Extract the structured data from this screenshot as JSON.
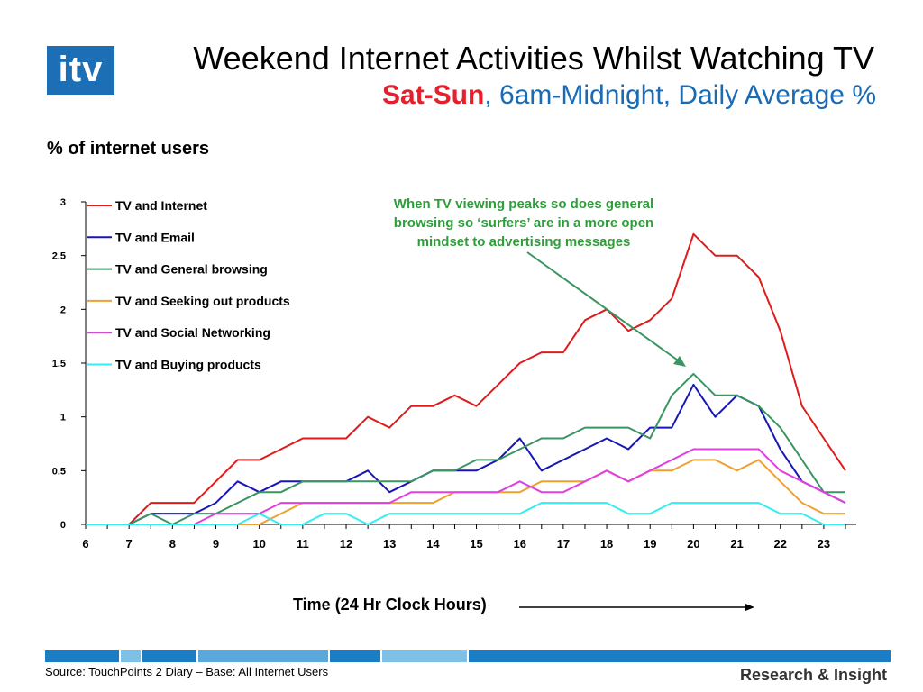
{
  "logo": {
    "text": "itv"
  },
  "title": "Weekend Internet Activities Whilst Watching TV",
  "subtitle": {
    "highlight": "Sat-Sun",
    "rest": ", 6am-Midnight, Daily Average %"
  },
  "y_heading": "% of internet users",
  "annotation": "When TV viewing peaks so does general browsing so ‘surfers’ are in a more open mindset to advertising messages",
  "x_title": "Time (24 Hr Clock Hours)",
  "source": "Source: TouchPoints 2 Diary  – Base: All Internet Users",
  "brand": "Research & Insight",
  "colors": {
    "tv_internet": "#e01b1b",
    "tv_email": "#1717b8",
    "tv_general": "#3b9463",
    "tv_products": "#f0a030",
    "tv_social": "#e040e0",
    "tv_buying": "#33eef0",
    "annotation": "#2e9e3a",
    "title_blue": "#1a6bb3",
    "title_red": "#e3202c"
  },
  "chart_data": {
    "type": "line",
    "x": [
      6,
      6.5,
      7,
      7.5,
      8,
      8.5,
      9,
      9.5,
      10,
      10.5,
      11,
      11.5,
      12,
      12.5,
      13,
      13.5,
      14,
      14.5,
      15,
      15.5,
      16,
      16.5,
      17,
      17.5,
      18,
      18.5,
      19,
      19.5,
      20,
      20.5,
      21,
      21.5,
      22,
      22.5,
      23,
      23.5
    ],
    "x_ticks": [
      "6",
      "7",
      "8",
      "9",
      "10",
      "11",
      "12",
      "13",
      "14",
      "15",
      "16",
      "17",
      "18",
      "19",
      "20",
      "21",
      "22",
      "23"
    ],
    "y_ticks": [
      "0",
      "0.5",
      "1",
      "1.5",
      "2",
      "2.5",
      "3"
    ],
    "ylim": [
      0,
      3
    ],
    "legend_position": "top-left",
    "series": [
      {
        "name": "TV and Internet",
        "color_key": "tv_internet",
        "values": [
          0,
          0,
          0,
          0.2,
          0.2,
          0.2,
          0.4,
          0.6,
          0.6,
          0.7,
          0.8,
          0.8,
          0.8,
          1.0,
          0.9,
          1.1,
          1.1,
          1.2,
          1.1,
          1.3,
          1.5,
          1.6,
          1.6,
          1.9,
          2.0,
          1.8,
          1.9,
          2.1,
          2.7,
          2.5,
          2.5,
          2.3,
          1.8,
          1.1,
          0.8,
          0.5
        ]
      },
      {
        "name": "TV and Email",
        "color_key": "tv_email",
        "values": [
          0,
          0,
          0,
          0.1,
          0.1,
          0.1,
          0.2,
          0.4,
          0.3,
          0.4,
          0.4,
          0.4,
          0.4,
          0.5,
          0.3,
          0.4,
          0.5,
          0.5,
          0.5,
          0.6,
          0.8,
          0.5,
          0.6,
          0.7,
          0.8,
          0.7,
          0.9,
          0.9,
          1.3,
          1.0,
          1.2,
          1.1,
          0.7,
          0.4,
          0.3,
          0.2
        ]
      },
      {
        "name": "TV and General browsing",
        "color_key": "tv_general",
        "values": [
          0,
          0,
          0,
          0.1,
          0,
          0.1,
          0.1,
          0.2,
          0.3,
          0.3,
          0.4,
          0.4,
          0.4,
          0.4,
          0.4,
          0.4,
          0.5,
          0.5,
          0.6,
          0.6,
          0.7,
          0.8,
          0.8,
          0.9,
          0.9,
          0.9,
          0.8,
          1.2,
          1.4,
          1.2,
          1.2,
          1.1,
          0.9,
          0.6,
          0.3,
          0.3
        ]
      },
      {
        "name": "TV and Seeking out products",
        "color_key": "tv_products",
        "values": [
          0,
          0,
          0,
          0,
          0,
          0,
          0,
          0,
          0,
          0.1,
          0.2,
          0.2,
          0.2,
          0.2,
          0.2,
          0.2,
          0.2,
          0.3,
          0.3,
          0.3,
          0.3,
          0.4,
          0.4,
          0.4,
          0.5,
          0.4,
          0.5,
          0.5,
          0.6,
          0.6,
          0.5,
          0.6,
          0.4,
          0.2,
          0.1,
          0.1
        ]
      },
      {
        "name": "TV and Social Networking",
        "color_key": "tv_social",
        "values": [
          0,
          0,
          0,
          0,
          0,
          0,
          0.1,
          0.1,
          0.1,
          0.2,
          0.2,
          0.2,
          0.2,
          0.2,
          0.2,
          0.3,
          0.3,
          0.3,
          0.3,
          0.3,
          0.4,
          0.3,
          0.3,
          0.4,
          0.5,
          0.4,
          0.5,
          0.6,
          0.7,
          0.7,
          0.7,
          0.7,
          0.5,
          0.4,
          0.3,
          0.2
        ]
      },
      {
        "name": "TV and Buying products",
        "color_key": "tv_buying",
        "values": [
          0,
          0,
          0,
          0,
          0,
          0,
          0,
          0,
          0.1,
          0,
          0,
          0.1,
          0.1,
          0,
          0.1,
          0.1,
          0.1,
          0.1,
          0.1,
          0.1,
          0.1,
          0.2,
          0.2,
          0.2,
          0.2,
          0.1,
          0.1,
          0.2,
          0.2,
          0.2,
          0.2,
          0.2,
          0.1,
          0.1,
          0,
          0
        ]
      }
    ]
  }
}
